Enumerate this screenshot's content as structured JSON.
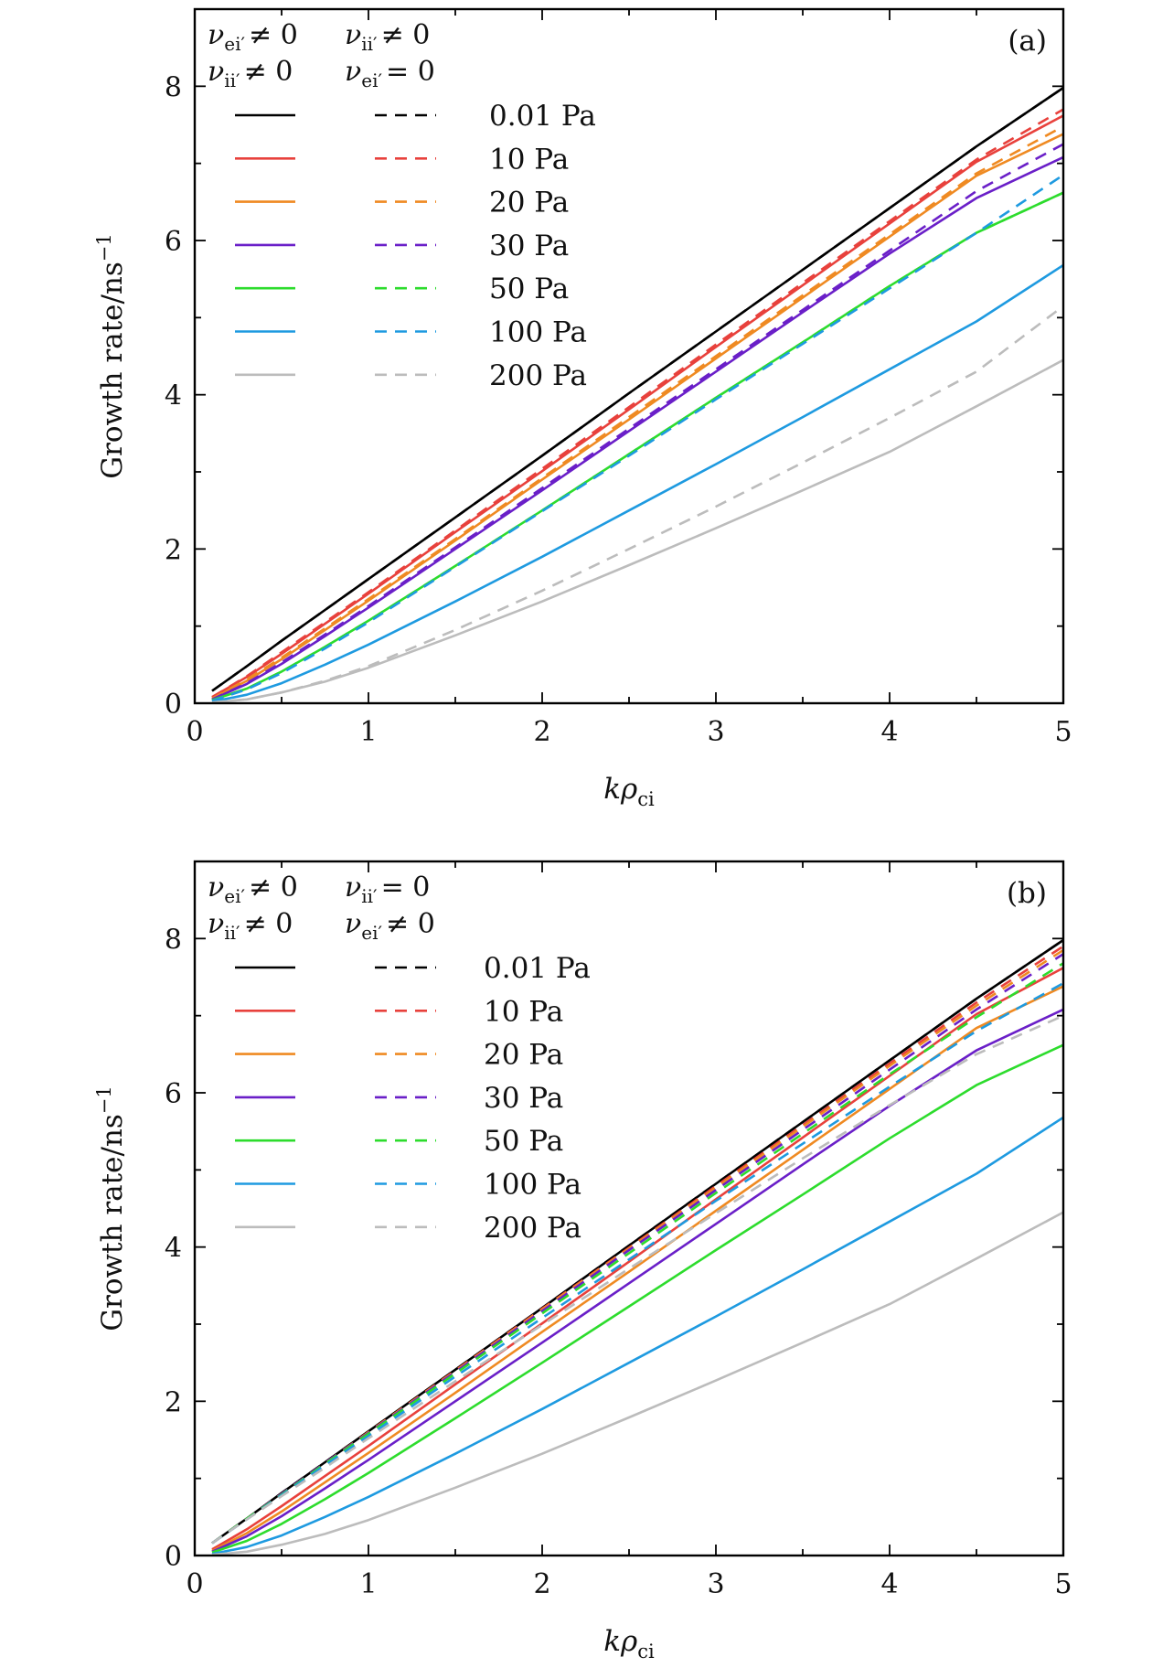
{
  "chart_data": [
    {
      "type": "line",
      "panel_label": "(a)",
      "xlabel_main": "k",
      "xlabel_greek": "ρ",
      "xlabel_sub": "ci",
      "ylabel": "Growth rate/ns",
      "ylabel_sup": "−1",
      "xlim": [
        0,
        5
      ],
      "ylim": [
        0,
        9
      ],
      "xticks": [
        "0",
        "1",
        "2",
        "3",
        "4",
        "5"
      ],
      "yticks": [
        "0",
        "2",
        "4",
        "6",
        "8"
      ],
      "legend_header": {
        "solid_line1": "ν ei′ ≠ 0",
        "solid_line2": "ν ii′ ≠ 0",
        "dashed_line1": "ν ii′ ≠ 0",
        "dashed_line2": "ν ei′ = 0"
      },
      "x": [
        0.1,
        0.3,
        0.5,
        0.75,
        1.0,
        1.5,
        2.0,
        2.5,
        3.0,
        3.5,
        4.0,
        4.5,
        5.0
      ],
      "series": [
        {
          "name": "0.01 Pa",
          "style": "solid",
          "color": "#000000",
          "values": [
            0.16,
            0.48,
            0.81,
            1.21,
            1.61,
            2.41,
            3.21,
            4.02,
            4.82,
            5.62,
            6.42,
            7.22,
            7.98
          ]
        },
        {
          "name": "10 Pa",
          "style": "solid",
          "color": "#e8413c",
          "values": [
            0.08,
            0.34,
            0.64,
            1.03,
            1.42,
            2.22,
            3.01,
            3.81,
            4.62,
            5.42,
            6.22,
            7.02,
            7.62
          ]
        },
        {
          "name": "20 Pa",
          "style": "solid",
          "color": "#ef8a22",
          "values": [
            0.06,
            0.29,
            0.57,
            0.95,
            1.33,
            2.11,
            2.9,
            3.68,
            4.47,
            5.26,
            6.05,
            6.84,
            7.38
          ]
        },
        {
          "name": "30 Pa",
          "style": "solid",
          "color": "#6a1fc8",
          "values": [
            0.05,
            0.25,
            0.51,
            0.87,
            1.24,
            2.0,
            2.76,
            3.53,
            4.3,
            5.07,
            5.83,
            6.55,
            7.08
          ]
        },
        {
          "name": "50 Pa",
          "style": "solid",
          "color": "#2ddc2d",
          "values": [
            0.04,
            0.19,
            0.41,
            0.73,
            1.07,
            1.78,
            2.5,
            3.23,
            3.96,
            4.68,
            5.41,
            6.1,
            6.62
          ]
        },
        {
          "name": "100 Pa",
          "style": "solid",
          "color": "#1e9ae0",
          "values": [
            0.02,
            0.11,
            0.26,
            0.5,
            0.76,
            1.32,
            1.9,
            2.5,
            3.1,
            3.71,
            4.33,
            4.95,
            5.68
          ]
        },
        {
          "name": "200 Pa",
          "style": "solid",
          "color": "#bcbcbc",
          "values": [
            0.01,
            0.05,
            0.14,
            0.28,
            0.46,
            0.88,
            1.32,
            1.79,
            2.27,
            2.76,
            3.26,
            3.85,
            4.45
          ]
        },
        {
          "name": "0.01 Pa",
          "style": "dashed",
          "color": "#000000",
          "values": [
            0.16,
            0.48,
            0.81,
            1.21,
            1.61,
            2.41,
            3.21,
            4.02,
            4.82,
            5.62,
            6.42,
            7.22,
            7.98
          ]
        },
        {
          "name": "10 Pa",
          "style": "dashed",
          "color": "#e8413c",
          "values": [
            0.08,
            0.35,
            0.66,
            1.05,
            1.44,
            2.24,
            3.04,
            3.84,
            4.65,
            5.45,
            6.25,
            7.05,
            7.7
          ]
        },
        {
          "name": "20 Pa",
          "style": "dashed",
          "color": "#ef8a22",
          "values": [
            0.06,
            0.31,
            0.59,
            0.97,
            1.35,
            2.13,
            2.92,
            3.71,
            4.5,
            5.29,
            6.08,
            6.87,
            7.48
          ]
        },
        {
          "name": "30 Pa",
          "style": "dashed",
          "color": "#6a1fc8",
          "values": [
            0.05,
            0.26,
            0.53,
            0.89,
            1.26,
            2.02,
            2.79,
            3.56,
            4.33,
            5.1,
            5.87,
            6.64,
            7.25
          ]
        },
        {
          "name": "50 Pa",
          "style": "dashed",
          "color": "#2ddc2d",
          "values": [
            0.04,
            0.19,
            0.41,
            0.73,
            1.07,
            1.78,
            2.5,
            3.23,
            3.96,
            4.68,
            5.41,
            6.1,
            6.62
          ]
        },
        {
          "name": "100 Pa",
          "style": "dashed",
          "color": "#1e9ae0",
          "values": [
            0.03,
            0.18,
            0.39,
            0.71,
            1.05,
            1.77,
            2.49,
            3.21,
            3.94,
            4.66,
            5.38,
            6.1,
            6.85
          ]
        },
        {
          "name": "200 Pa",
          "style": "dashed",
          "color": "#bcbcbc",
          "values": [
            0.01,
            0.05,
            0.14,
            0.29,
            0.48,
            0.95,
            1.46,
            2.0,
            2.55,
            3.12,
            3.7,
            4.3,
            5.15
          ]
        }
      ]
    },
    {
      "type": "line",
      "panel_label": "(b)",
      "xlabel_main": "k",
      "xlabel_greek": "ρ",
      "xlabel_sub": "ci",
      "ylabel": "Growth rate/ns",
      "ylabel_sup": "−1",
      "xlim": [
        0,
        5
      ],
      "ylim": [
        0,
        9
      ],
      "xticks": [
        "0",
        "1",
        "2",
        "3",
        "4",
        "5"
      ],
      "yticks": [
        "0",
        "2",
        "4",
        "6",
        "8"
      ],
      "legend_header": {
        "solid_line1": "ν ei′ ≠ 0",
        "solid_line2": "ν ii′ ≠ 0",
        "dashed_line1": "ν ii′ = 0",
        "dashed_line2": "ν ei′ ≠ 0"
      },
      "x": [
        0.1,
        0.3,
        0.5,
        0.75,
        1.0,
        1.5,
        2.0,
        2.5,
        3.0,
        3.5,
        4.0,
        4.5,
        5.0
      ],
      "series": [
        {
          "name": "0.01 Pa",
          "style": "solid",
          "color": "#000000",
          "values": [
            0.16,
            0.48,
            0.81,
            1.21,
            1.61,
            2.41,
            3.21,
            4.02,
            4.82,
            5.62,
            6.42,
            7.22,
            7.98
          ]
        },
        {
          "name": "10 Pa",
          "style": "solid",
          "color": "#e8413c",
          "values": [
            0.08,
            0.34,
            0.64,
            1.03,
            1.42,
            2.22,
            3.01,
            3.81,
            4.62,
            5.42,
            6.22,
            7.02,
            7.62
          ]
        },
        {
          "name": "20 Pa",
          "style": "solid",
          "color": "#ef8a22",
          "values": [
            0.06,
            0.29,
            0.57,
            0.95,
            1.33,
            2.11,
            2.9,
            3.68,
            4.47,
            5.26,
            6.05,
            6.84,
            7.38
          ]
        },
        {
          "name": "30 Pa",
          "style": "solid",
          "color": "#6a1fc8",
          "values": [
            0.05,
            0.25,
            0.51,
            0.87,
            1.24,
            2.0,
            2.76,
            3.53,
            4.3,
            5.07,
            5.83,
            6.55,
            7.08
          ]
        },
        {
          "name": "50 Pa",
          "style": "solid",
          "color": "#2ddc2d",
          "values": [
            0.04,
            0.19,
            0.41,
            0.73,
            1.07,
            1.78,
            2.5,
            3.23,
            3.96,
            4.68,
            5.41,
            6.1,
            6.62
          ]
        },
        {
          "name": "100 Pa",
          "style": "solid",
          "color": "#1e9ae0",
          "values": [
            0.02,
            0.11,
            0.26,
            0.5,
            0.76,
            1.32,
            1.9,
            2.5,
            3.1,
            3.71,
            4.33,
            4.95,
            5.68
          ]
        },
        {
          "name": "200 Pa",
          "style": "solid",
          "color": "#bcbcbc",
          "values": [
            0.01,
            0.05,
            0.14,
            0.28,
            0.46,
            0.88,
            1.32,
            1.79,
            2.27,
            2.76,
            3.26,
            3.85,
            4.45
          ]
        },
        {
          "name": "0.01 Pa",
          "style": "dashed",
          "color": "#000000",
          "values": [
            0.16,
            0.48,
            0.81,
            1.21,
            1.61,
            2.41,
            3.21,
            4.02,
            4.82,
            5.62,
            6.42,
            7.22,
            7.98
          ]
        },
        {
          "name": "10 Pa",
          "style": "dashed",
          "color": "#e8413c",
          "values": [
            0.16,
            0.48,
            0.8,
            1.2,
            1.6,
            2.4,
            3.2,
            3.99,
            4.79,
            5.58,
            6.38,
            7.17,
            7.9
          ]
        },
        {
          "name": "20 Pa",
          "style": "dashed",
          "color": "#ef8a22",
          "values": [
            0.16,
            0.48,
            0.8,
            1.2,
            1.6,
            2.39,
            3.19,
            3.98,
            4.77,
            5.56,
            6.35,
            7.13,
            7.85
          ]
        },
        {
          "name": "30 Pa",
          "style": "dashed",
          "color": "#6a1fc8",
          "values": [
            0.16,
            0.48,
            0.8,
            1.2,
            1.59,
            2.38,
            3.17,
            3.96,
            4.74,
            5.52,
            6.3,
            7.08,
            7.8
          ]
        },
        {
          "name": "50 Pa",
          "style": "dashed",
          "color": "#2ddc2d",
          "values": [
            0.16,
            0.48,
            0.79,
            1.19,
            1.58,
            2.36,
            3.14,
            3.92,
            4.7,
            5.47,
            6.24,
            6.98,
            7.68
          ]
        },
        {
          "name": "100 Pa",
          "style": "dashed",
          "color": "#1e9ae0",
          "values": [
            0.16,
            0.47,
            0.78,
            1.17,
            1.55,
            2.32,
            3.08,
            3.84,
            4.6,
            5.34,
            6.08,
            6.8,
            7.42
          ]
        },
        {
          "name": "200 Pa",
          "style": "dashed",
          "color": "#bcbcbc",
          "values": [
            0.16,
            0.47,
            0.77,
            1.14,
            1.52,
            2.26,
            2.99,
            3.72,
            4.44,
            5.15,
            5.84,
            6.5,
            7.0
          ]
        }
      ]
    }
  ]
}
